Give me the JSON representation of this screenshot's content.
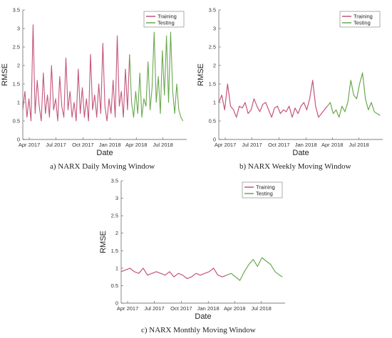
{
  "colors": {
    "training": "#c4557a",
    "testing": "#6aa84f",
    "axis": "#555555"
  },
  "captions": {
    "a": "a) NARX Daily Moving Window",
    "b": "b) NARX Weekly Moving Window",
    "c": "c) NARX Monthly Moving Window"
  },
  "chart_data": [
    {
      "id": "daily",
      "type": "line",
      "xlabel": "Date",
      "ylabel": "RMSE",
      "ylim": [
        0,
        3.5
      ],
      "yticks": [
        "0",
        "0.5",
        "1",
        "1.5",
        "2",
        "2.5",
        "3",
        "3.5"
      ],
      "xticks": [
        "Apr 2017",
        "Jul 2017",
        "Oct 2017",
        "Jan 2018",
        "Apr 2018",
        "Jul 2018"
      ],
      "legend_position": "top-right",
      "series": [
        {
          "name": "Training",
          "x": [
            "2017-03-10",
            "2017-03-17",
            "2017-03-24",
            "2017-03-31",
            "2017-04-07",
            "2017-04-14",
            "2017-04-21",
            "2017-04-28",
            "2017-05-05",
            "2017-05-12",
            "2017-05-19",
            "2017-05-26",
            "2017-06-02",
            "2017-06-09",
            "2017-06-16",
            "2017-06-23",
            "2017-06-30",
            "2017-07-07",
            "2017-07-14",
            "2017-07-21",
            "2017-07-28",
            "2017-08-04",
            "2017-08-11",
            "2017-08-18",
            "2017-08-25",
            "2017-09-01",
            "2017-09-08",
            "2017-09-15",
            "2017-09-22",
            "2017-09-29",
            "2017-10-06",
            "2017-10-13",
            "2017-10-20",
            "2017-10-27",
            "2017-11-03",
            "2017-11-10",
            "2017-11-17",
            "2017-11-24",
            "2017-12-01",
            "2017-12-08",
            "2017-12-15",
            "2017-12-22",
            "2017-12-29",
            "2018-01-05",
            "2018-01-12",
            "2018-01-19",
            "2018-01-26",
            "2018-02-02",
            "2018-02-09",
            "2018-02-16",
            "2018-02-23",
            "2018-03-02",
            "2018-03-09"
          ],
          "y": [
            0.8,
            1.3,
            0.6,
            1.1,
            0.5,
            3.1,
            0.7,
            1.6,
            0.9,
            0.5,
            1.8,
            0.7,
            1.2,
            0.6,
            2.0,
            0.8,
            1.1,
            0.5,
            1.7,
            0.9,
            0.6,
            2.2,
            0.8,
            1.3,
            0.6,
            1.0,
            0.5,
            1.9,
            0.7,
            1.4,
            0.6,
            1.1,
            0.5,
            2.3,
            0.8,
            1.2,
            0.6,
            1.5,
            0.7,
            2.6,
            0.9,
            0.5,
            1.1,
            0.7,
            1.6,
            0.6,
            2.8,
            0.9,
            1.3,
            0.6,
            1.9,
            0.8,
            2.3
          ]
        },
        {
          "name": "Testing",
          "x": [
            "2018-03-09",
            "2018-03-16",
            "2018-03-23",
            "2018-03-30",
            "2018-04-06",
            "2018-04-13",
            "2018-04-20",
            "2018-04-27",
            "2018-05-04",
            "2018-05-11",
            "2018-05-18",
            "2018-05-25",
            "2018-06-01",
            "2018-06-08",
            "2018-06-15",
            "2018-06-22",
            "2018-06-29",
            "2018-07-06",
            "2018-07-13",
            "2018-07-20",
            "2018-07-27",
            "2018-08-03",
            "2018-08-10",
            "2018-08-17",
            "2018-08-24",
            "2018-08-31",
            "2018-09-07"
          ],
          "y": [
            2.3,
            1.0,
            0.6,
            1.3,
            0.7,
            1.8,
            0.6,
            1.1,
            0.9,
            2.1,
            0.8,
            1.4,
            2.9,
            1.0,
            1.7,
            0.7,
            2.4,
            1.2,
            2.8,
            1.0,
            2.9,
            1.3,
            0.7,
            1.5,
            0.8,
            0.6,
            0.5
          ]
        }
      ]
    },
    {
      "id": "weekly",
      "type": "line",
      "xlabel": "Date",
      "ylabel": "RMSE",
      "ylim": [
        0,
        3.5
      ],
      "yticks": [
        "0",
        "0.5",
        "1",
        "1.5",
        "2",
        "2.5",
        "3",
        "3.5"
      ],
      "xticks": [
        "Apr 2017",
        "Jul 2017",
        "Oct 2017",
        "Jan 2018",
        "Apr 2018",
        "Jul 2018"
      ],
      "legend_position": "top-right",
      "series": [
        {
          "name": "Training",
          "x": [
            "2017-03-10",
            "2017-03-20",
            "2017-03-30",
            "2017-04-09",
            "2017-04-19",
            "2017-04-29",
            "2017-05-09",
            "2017-05-19",
            "2017-05-29",
            "2017-06-08",
            "2017-06-18",
            "2017-06-28",
            "2017-07-08",
            "2017-07-18",
            "2017-07-28",
            "2017-08-07",
            "2017-08-17",
            "2017-08-27",
            "2017-09-06",
            "2017-09-16",
            "2017-09-26",
            "2017-10-06",
            "2017-10-16",
            "2017-10-26",
            "2017-11-05",
            "2017-11-15",
            "2017-11-25",
            "2017-12-05",
            "2017-12-15",
            "2017-12-25",
            "2018-01-04",
            "2018-01-14",
            "2018-01-24",
            "2018-02-03",
            "2018-02-13",
            "2018-02-23",
            "2018-03-05",
            "2018-03-15"
          ],
          "y": [
            1.0,
            1.2,
            0.8,
            1.5,
            0.9,
            0.8,
            0.6,
            0.9,
            0.85,
            1.0,
            0.7,
            0.8,
            1.1,
            0.9,
            0.75,
            0.95,
            1.0,
            0.8,
            0.6,
            0.85,
            0.9,
            0.7,
            0.8,
            0.75,
            0.9,
            0.6,
            0.85,
            0.7,
            0.9,
            1.0,
            0.8,
            1.1,
            1.6,
            0.9,
            0.6,
            0.7,
            0.8,
            0.9
          ]
        },
        {
          "name": "Testing",
          "x": [
            "2018-03-15",
            "2018-03-25",
            "2018-04-04",
            "2018-04-14",
            "2018-04-24",
            "2018-05-04",
            "2018-05-14",
            "2018-05-24",
            "2018-06-03",
            "2018-06-13",
            "2018-06-23",
            "2018-07-03",
            "2018-07-13",
            "2018-07-23",
            "2018-08-02",
            "2018-08-12",
            "2018-08-22",
            "2018-09-01",
            "2018-09-11"
          ],
          "y": [
            0.9,
            1.0,
            0.7,
            0.8,
            0.6,
            0.9,
            0.75,
            1.0,
            1.6,
            1.2,
            1.1,
            1.5,
            1.8,
            1.1,
            0.8,
            1.0,
            0.75,
            0.7,
            0.65
          ]
        }
      ]
    },
    {
      "id": "monthly",
      "type": "line",
      "xlabel": "Date",
      "ylabel": "RMSE",
      "ylim": [
        0,
        3.5
      ],
      "yticks": [
        "0",
        "0.5",
        "1",
        "1.5",
        "2",
        "2.5",
        "3",
        "3.5"
      ],
      "xticks": [
        "Apr 2017",
        "Jul 2017",
        "Oct 2017",
        "Jan 2018",
        "Apr 2018",
        "Jul 2018"
      ],
      "legend_position": "top-right",
      "series": [
        {
          "name": "Training",
          "x": [
            "2017-03-10",
            "2017-03-25",
            "2017-04-09",
            "2017-04-24",
            "2017-05-09",
            "2017-05-24",
            "2017-06-08",
            "2017-06-23",
            "2017-07-08",
            "2017-07-23",
            "2017-08-07",
            "2017-08-22",
            "2017-09-06",
            "2017-09-21",
            "2017-10-06",
            "2017-10-21",
            "2017-11-05",
            "2017-11-20",
            "2017-12-05",
            "2017-12-20",
            "2018-01-04",
            "2018-01-19",
            "2018-02-03",
            "2018-02-18",
            "2018-03-05"
          ],
          "y": [
            0.9,
            0.95,
            1.0,
            0.9,
            0.85,
            1.0,
            0.8,
            0.85,
            0.9,
            0.85,
            0.8,
            0.9,
            0.75,
            0.85,
            0.8,
            0.7,
            0.75,
            0.85,
            0.8,
            0.85,
            0.9,
            1.0,
            0.8,
            0.75,
            0.8
          ]
        },
        {
          "name": "Testing",
          "x": [
            "2018-03-05",
            "2018-03-20",
            "2018-04-04",
            "2018-04-19",
            "2018-05-04",
            "2018-05-19",
            "2018-06-03",
            "2018-06-18",
            "2018-07-03",
            "2018-07-18",
            "2018-08-02",
            "2018-08-17",
            "2018-09-01",
            "2018-09-11"
          ],
          "y": [
            0.8,
            0.85,
            0.75,
            0.65,
            0.9,
            1.1,
            1.25,
            1.05,
            1.3,
            1.2,
            1.1,
            0.9,
            0.8,
            0.75
          ]
        }
      ]
    }
  ]
}
